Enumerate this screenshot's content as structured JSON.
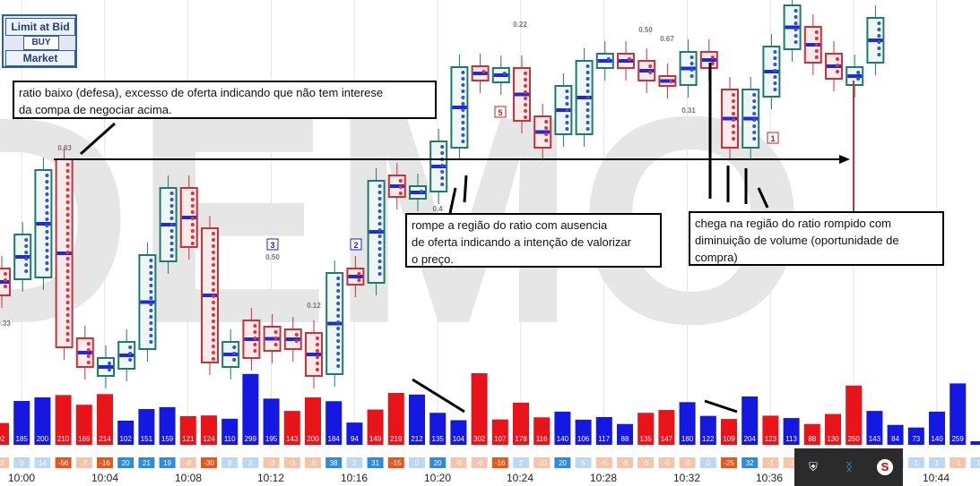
{
  "widget": {
    "title": "Limit at Bid",
    "side": "BUY",
    "type": "Market"
  },
  "notes": [
    "ratio baixo (defesa), excesso de oferta indicando que não tem interese\nda compa de negociar acima.",
    "rompe a região do ratio com ausencia\nde oferta indicando a intenção de valorizar\no preço.",
    "chega na região do ratio rompido com\ndiminuição de volume (oportunidade de\ncompra)"
  ],
  "watermark": "DEMO",
  "tray_icons": [
    "shield-icon",
    "bluetooth-icon",
    "security-s-icon"
  ],
  "colors": {
    "up": "#1f7a6e",
    "down": "#c8323a",
    "vol_up": "#1418e0",
    "vol_down": "#e8141a",
    "poc": "#1e2ad6"
  },
  "chart_data": {
    "type": "bar",
    "title": "",
    "time_ticks": [
      "10:00",
      "10:04",
      "10:08",
      "10:12",
      "10:16",
      "10:20",
      "10:24",
      "10:28",
      "10:32",
      "10:36",
      "10:44"
    ],
    "bar_labels": [
      "3",
      "2",
      "5",
      "1"
    ],
    "ratio_labels": [
      "0.33",
      "0.33",
      "0.50",
      "0.12",
      "0.22",
      "0.50",
      "0.67",
      "0.31",
      "0.4"
    ],
    "volume": {
      "values": [
        92,
        185,
        200,
        210,
        169,
        214,
        102,
        151,
        159,
        121,
        124,
        110,
        299,
        195,
        143,
        200,
        184,
        94,
        149,
        219,
        212,
        135,
        104,
        302,
        107,
        178,
        116,
        140,
        106,
        117,
        88,
        135,
        147,
        180,
        122,
        109,
        204,
        123,
        113,
        88,
        130,
        250,
        143,
        84,
        73,
        140,
        259,
        15
      ],
      "direction": [
        "d",
        "u",
        "u",
        "d",
        "d",
        "d",
        "u",
        "u",
        "u",
        "d",
        "d",
        "u",
        "u",
        "u",
        "d",
        "d",
        "u",
        "u",
        "d",
        "d",
        "u",
        "u",
        "u",
        "d",
        "d",
        "d",
        "d",
        "u",
        "u",
        "u",
        "u",
        "d",
        "d",
        "u",
        "u",
        "d",
        "u",
        "d",
        "u",
        "d",
        "d",
        "d",
        "u",
        "u",
        "u",
        "u",
        "u",
        "u"
      ]
    },
    "delta": [
      "-2",
      "0",
      "14",
      "-56",
      "-7",
      "-16",
      "20",
      "21",
      "19",
      "-8",
      "-30",
      "8",
      "3",
      "-3",
      "-3",
      "-6",
      "38",
      "2",
      "31",
      "-15",
      "0",
      "20",
      "-6",
      "-6",
      "-16",
      "2",
      "-10",
      "20",
      "5",
      "-5",
      "-5",
      "-5",
      "-5",
      "-5",
      "0",
      "-25",
      "32",
      "-1",
      "-1",
      "5",
      "-1",
      "-1",
      "1",
      "1",
      "1",
      "1",
      "-1",
      "1"
    ],
    "candles": [
      [
        0,
        0,
        0,
        1,
        1
      ],
      [
        0,
        0,
        0,
        1,
        1
      ],
      [
        0,
        0,
        0,
        1,
        1
      ]
    ],
    "reference_level": "ratio"
  }
}
